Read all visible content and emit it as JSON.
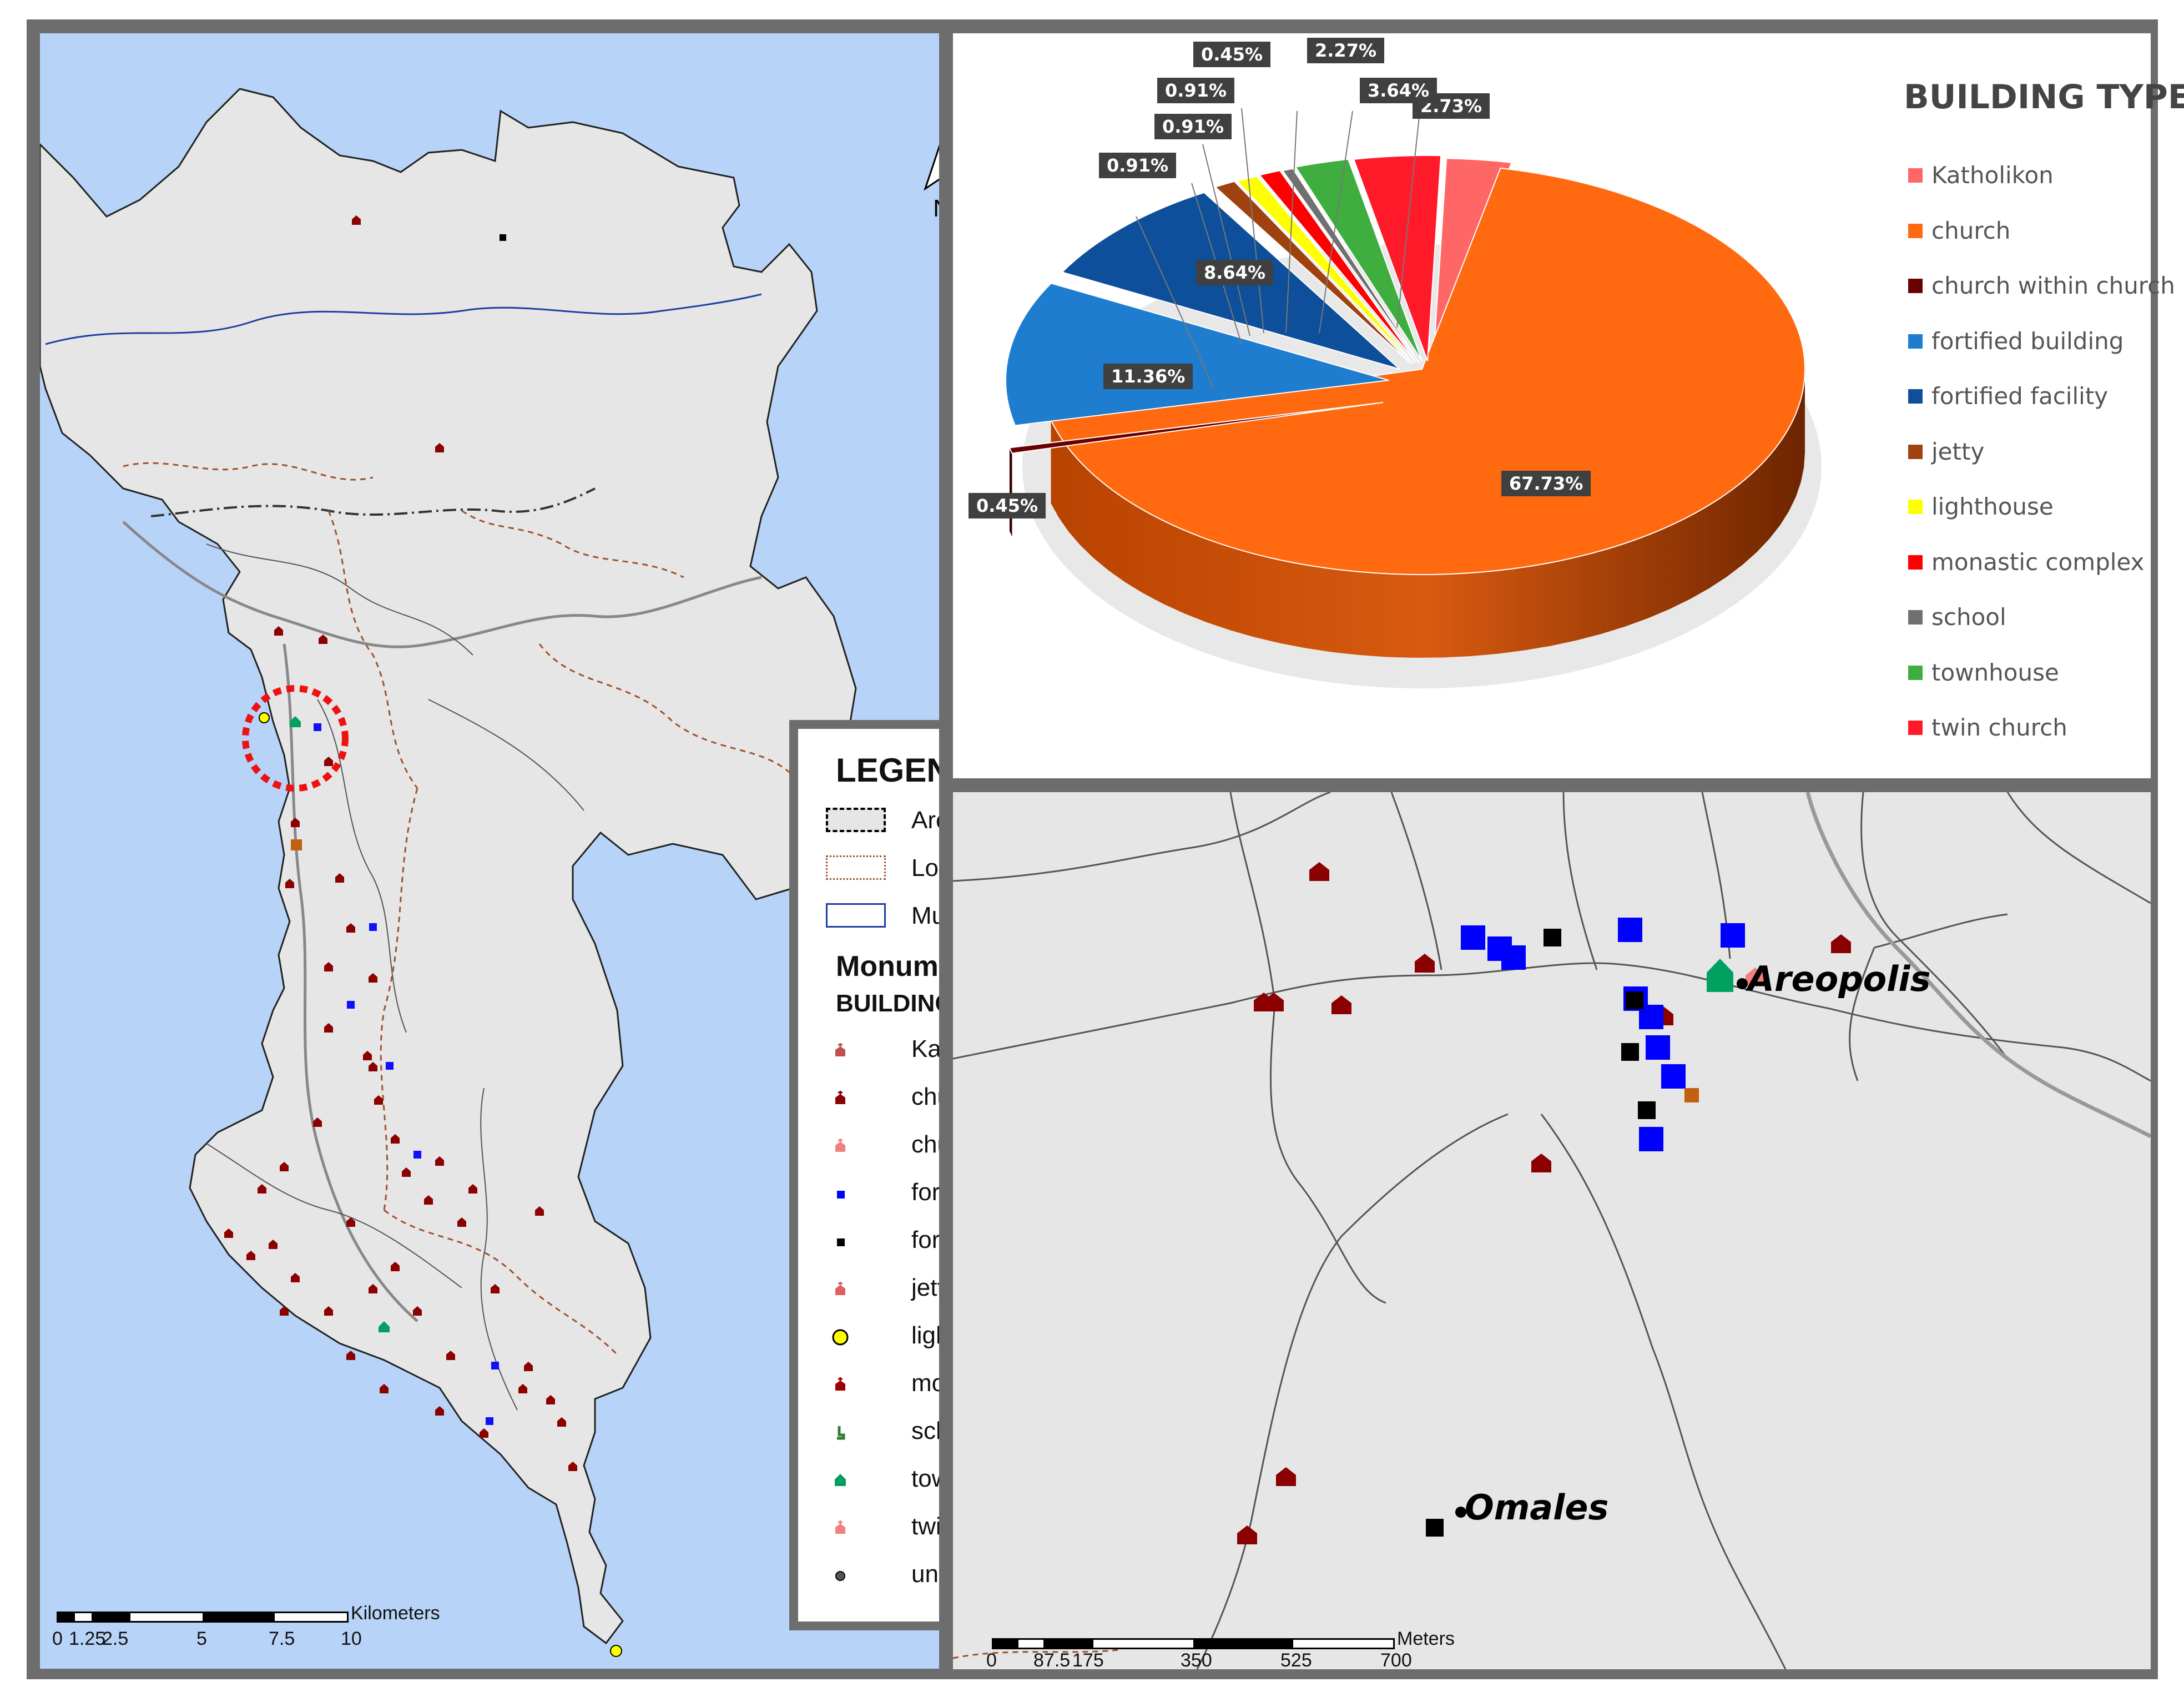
{
  "legend": {
    "title": "LEGEND",
    "boundaries": [
      {
        "label": "Area of study",
        "icon": "area-of-study-dashdot"
      },
      {
        "label": "Local unity boundaries",
        "icon": "local-unity-dotted"
      },
      {
        "label": "Municipal boundaries",
        "icon": "municipal-solid"
      }
    ],
    "monuments_heading": "Monuments",
    "type_heading": "BUILDING TYPE",
    "types": [
      {
        "label": "Katholikon",
        "icon": "katholikon-icon",
        "color": "#c0504d"
      },
      {
        "label": "church",
        "icon": "church-icon",
        "color": "#8b0000"
      },
      {
        "label": "church within church",
        "icon": "church-within-church-icon",
        "color": "#f08080"
      },
      {
        "label": "fortified building",
        "icon": "fortified-building-icon",
        "color": "#0000ff"
      },
      {
        "label": "fortified facility",
        "icon": "fortified-facility-icon",
        "color": "#000000"
      },
      {
        "label": "jetty",
        "icon": "jetty-icon",
        "color": "#e06060"
      },
      {
        "label": "lighthouse",
        "icon": "lighthouse-icon",
        "color": "#ffff00"
      },
      {
        "label": "monastic complex",
        "icon": "monastic-complex-icon",
        "color": "#a00000"
      },
      {
        "label": "school",
        "icon": "school-icon",
        "color": "#2e7d32"
      },
      {
        "label": "townhouse",
        "icon": "townhouse-icon",
        "color": "#00a060"
      },
      {
        "label": "twin church",
        "icon": "twin-church-icon",
        "color": "#f08080"
      },
      {
        "label": "unspecified",
        "icon": "unspecified-icon",
        "color": "#555555"
      }
    ]
  },
  "main_map": {
    "north_label": "N",
    "scale_label": "Kilometers",
    "scale_ticks": [
      "0",
      "1.25",
      "2.5",
      "5",
      "7.5",
      "10"
    ]
  },
  "inset_map": {
    "places": [
      "Areopolis",
      "Omales"
    ],
    "scale_label": "Meters",
    "scale_ticks": [
      "0",
      "87.5",
      "175",
      "350",
      "525",
      "700"
    ]
  },
  "pie": {
    "title": "BUILDING TYPE",
    "legend": [
      {
        "label": "Katholikon",
        "color": "#ff6666"
      },
      {
        "label": "church",
        "color": "#ff6a10"
      },
      {
        "label": "church within church",
        "color": "#6b0000"
      },
      {
        "label": "fortified building",
        "color": "#1f7dd0"
      },
      {
        "label": "fortified facility",
        "color": "#0d4f9a"
      },
      {
        "label": "jetty",
        "color": "#a0420f"
      },
      {
        "label": "lighthouse",
        "color": "#ffff00"
      },
      {
        "label": "monastic complex",
        "color": "#ff0000"
      },
      {
        "label": "school",
        "color": "#707070"
      },
      {
        "label": "townhouse",
        "color": "#3fae3f"
      },
      {
        "label": "twin church",
        "color": "#ff1a2a"
      }
    ]
  },
  "chart_data": {
    "type": "pie",
    "title": "BUILDING TYPE",
    "categories": [
      "Katholikon",
      "church",
      "church within church",
      "fortified building",
      "fortified facility",
      "jetty",
      "lighthouse",
      "monastic complex",
      "school",
      "townhouse",
      "twin church"
    ],
    "values": [
      2.73,
      67.73,
      0.45,
      11.36,
      8.64,
      0.91,
      0.91,
      0.91,
      0.45,
      2.27,
      3.64
    ],
    "labels": [
      "2.73%",
      "67.73%",
      "0.45%",
      "11.36%",
      "8.64%",
      "0.91%",
      "0.91%",
      "0.91%",
      "0.45%",
      "2.27%",
      "3.64%"
    ],
    "legend_position": "right"
  }
}
